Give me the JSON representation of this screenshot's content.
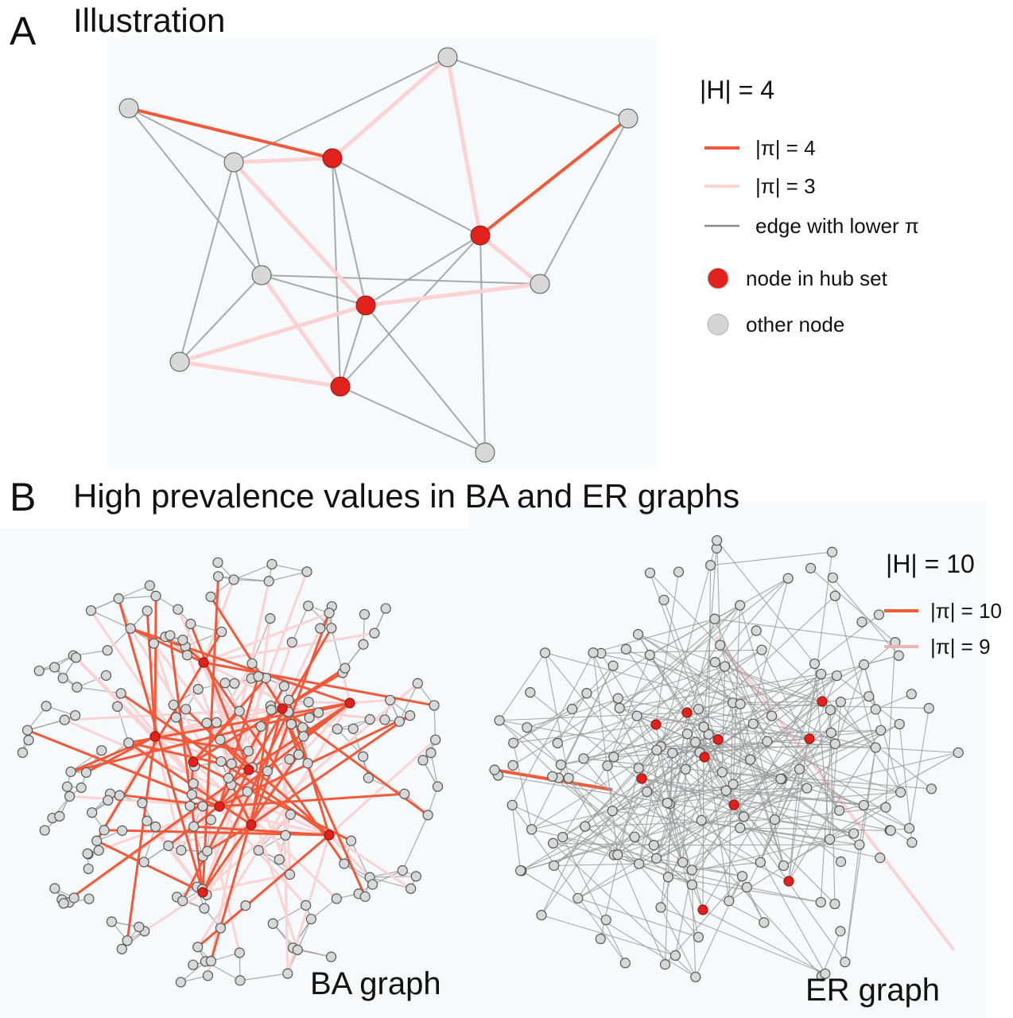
{
  "panel_a": {
    "letter": "A",
    "title": "Illustration",
    "legend": {
      "heading": "|H| = 4",
      "items": [
        "|π| = 4",
        "|π| = 3",
        "edge with lower π",
        "node in hub set",
        "other node"
      ]
    }
  },
  "panel_b": {
    "letter": "B",
    "title": "High prevalence values in BA and ER graphs",
    "legend": {
      "heading": "|H| = 10",
      "items": [
        "|π| = 10",
        "|π| = 9"
      ]
    },
    "labels": [
      "BA graph",
      "ER graph"
    ]
  }
}
